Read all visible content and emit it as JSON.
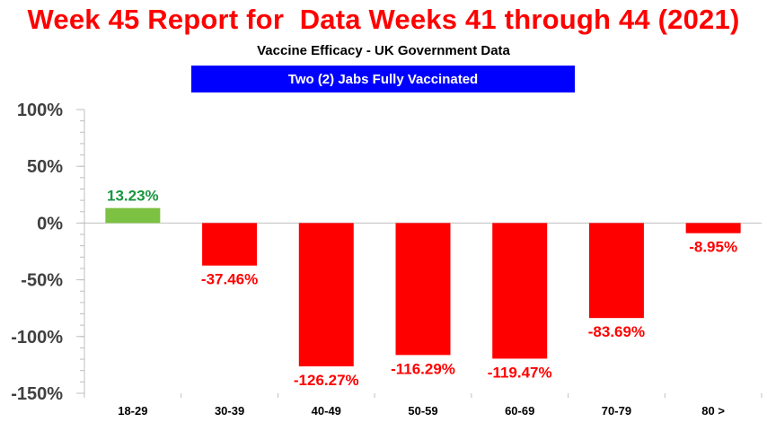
{
  "header": {
    "title": "Week 45 Report for  Data Weeks 41 through 44 (2021)",
    "subtitle": "Vaccine Efficacy - UK Government Data",
    "banner": "Two (2) Jabs Fully Vaccinated"
  },
  "colors": {
    "title": "#ff0000",
    "banner_bg": "#0000ff",
    "banner_text": "#ffffff",
    "positive_bar": "#7cc142",
    "negative_bar": "#ff0000",
    "positive_label": "#1a9641",
    "negative_label": "#ff0000"
  },
  "chart_data": {
    "type": "bar",
    "categories": [
      "18-29",
      "30-39",
      "40-49",
      "50-59",
      "60-69",
      "70-79",
      "80 >"
    ],
    "values": [
      13.23,
      -37.46,
      -126.27,
      -116.29,
      -119.47,
      -83.69,
      -8.95
    ],
    "data_labels": [
      "13.23%",
      "-37.46%",
      "-126.27%",
      "-116.29%",
      "-119.47%",
      "-83.69%",
      "-8.95%"
    ],
    "y_ticks": [
      100,
      50,
      0,
      -50,
      -100,
      -150
    ],
    "y_tick_labels": [
      "100%",
      "50%",
      "0%",
      "-50%",
      "-100%",
      "-150%"
    ],
    "ylim": [
      -150,
      100
    ],
    "minor_tick_step": 10,
    "grid": false,
    "legend": "none"
  }
}
